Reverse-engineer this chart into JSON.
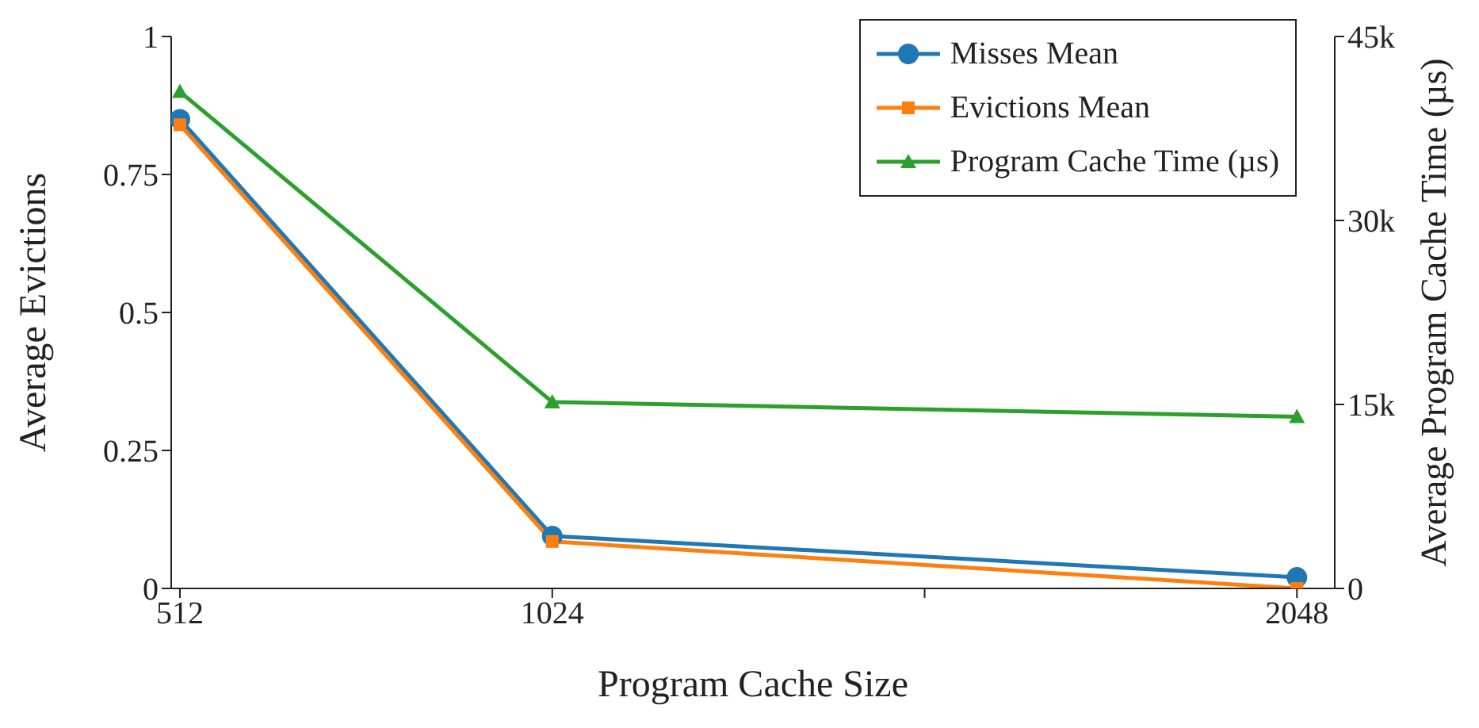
{
  "chart_data": {
    "type": "line",
    "xlabel": "Program Cache Size",
    "ylabel": "Average Evictions",
    "y2label": "Average Program Cache Time (µs)",
    "x": [
      512,
      1024,
      2048
    ],
    "series": [
      {
        "name": "Misses Mean",
        "color": "#1f77b4",
        "marker": "circle",
        "values": [
          0.85,
          0.095,
          0.02
        ]
      },
      {
        "name": "Evictions Mean",
        "color": "#ff7f0e",
        "marker": "square",
        "values": [
          0.84,
          0.085,
          0
        ]
      },
      {
        "name": "Program Cache Time (µs)",
        "color": "#2ca02c",
        "marker": "triangle",
        "axis": "y2",
        "values": [
          40500,
          15200,
          14000
        ]
      }
    ],
    "xlim": [
      500,
      2100
    ],
    "xticks": [
      512,
      1024,
      {
        "value": 1536,
        "label": null
      },
      2048
    ],
    "ylim": [
      0,
      1
    ],
    "yticks": [
      0,
      0.25,
      0.5,
      0.75,
      1
    ],
    "y2lim": [
      0,
      45000
    ],
    "y2ticks": [
      {
        "value": 0,
        "label": "0"
      },
      {
        "value": 15000,
        "label": "15k"
      },
      {
        "value": 30000,
        "label": "30k"
      },
      {
        "value": 45000,
        "label": "45k"
      }
    ],
    "grid": false,
    "legend": "top right"
  }
}
